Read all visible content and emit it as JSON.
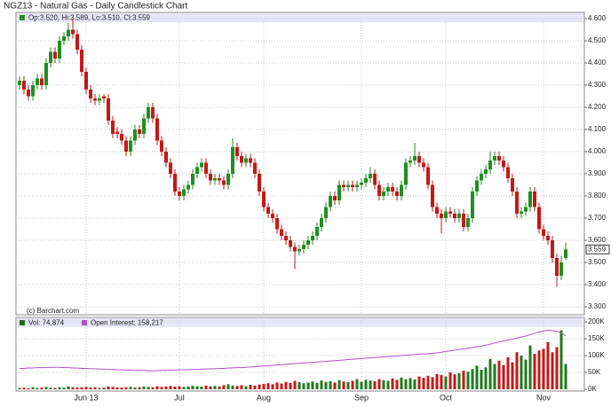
{
  "chart_data": [
    {
      "type": "candlestick",
      "title": "NGZ13 - Natural Gas - Daily Candlestick Chart",
      "legend_text": "Op:3.520, Hi:3.589, Lo:3.510, Cl:3.559",
      "annotation": "(c) Barchart.com",
      "up_color": "#1f8f1f",
      "down_color": "#c41818",
      "grid": true,
      "categories": [
        null,
        null,
        null,
        null,
        null,
        null,
        null,
        null,
        null,
        null,
        null,
        null,
        null,
        null,
        null,
        "Jun 13",
        null,
        null,
        null,
        null,
        null,
        null,
        null,
        null,
        null,
        null,
        null,
        null,
        null,
        null,
        null,
        null,
        null,
        null,
        null,
        null,
        "Jul",
        null,
        null,
        null,
        null,
        null,
        null,
        null,
        null,
        null,
        null,
        null,
        null,
        null,
        null,
        null,
        null,
        null,
        null,
        "Aug",
        null,
        null,
        null,
        null,
        null,
        null,
        null,
        null,
        null,
        null,
        null,
        null,
        null,
        null,
        null,
        null,
        null,
        null,
        null,
        null,
        null,
        "Sep",
        null,
        null,
        null,
        null,
        null,
        null,
        null,
        null,
        null,
        null,
        null,
        null,
        null,
        null,
        null,
        null,
        null,
        null,
        "Oct",
        null,
        null,
        null,
        null,
        null,
        null,
        null,
        null,
        null,
        null,
        null,
        null,
        null,
        null,
        null,
        null,
        null,
        null,
        null,
        null,
        null,
        "Nov",
        null,
        null,
        null,
        null,
        null
      ],
      "open": [
        4.3,
        4.32,
        4.28,
        4.25,
        4.3,
        4.33,
        4.3,
        4.4,
        4.45,
        4.42,
        4.5,
        4.52,
        4.55,
        4.53,
        4.46,
        4.36,
        4.28,
        4.24,
        4.23,
        4.25,
        4.24,
        4.14,
        4.09,
        4.08,
        4.05,
        4.0,
        4.05,
        4.1,
        4.08,
        4.15,
        4.2,
        4.15,
        4.05,
        4.0,
        3.95,
        3.9,
        3.82,
        3.8,
        3.83,
        3.85,
        3.9,
        3.93,
        3.95,
        3.9,
        3.87,
        3.88,
        3.87,
        3.85,
        3.9,
        4.02,
        3.98,
        3.95,
        3.97,
        3.95,
        3.9,
        3.82,
        3.75,
        3.72,
        3.7,
        3.65,
        3.62,
        3.6,
        3.57,
        3.55,
        3.56,
        3.58,
        3.6,
        3.62,
        3.66,
        3.7,
        3.75,
        3.8,
        3.78,
        3.85,
        3.84,
        3.85,
        3.84,
        3.85,
        3.86,
        3.88,
        3.9,
        3.85,
        3.8,
        3.82,
        3.84,
        3.82,
        3.8,
        3.85,
        3.95,
        3.96,
        3.98,
        3.95,
        3.93,
        3.85,
        3.75,
        3.72,
        3.7,
        3.73,
        3.72,
        3.7,
        3.72,
        3.66,
        3.7,
        3.82,
        3.87,
        3.9,
        3.92,
        3.96,
        3.98,
        3.96,
        3.93,
        3.88,
        3.82,
        3.72,
        3.73,
        3.75,
        3.82,
        3.75,
        3.65,
        3.62,
        3.6,
        3.52,
        3.44,
        3.52
      ],
      "high": [
        4.34,
        4.34,
        4.3,
        4.32,
        4.35,
        4.35,
        4.42,
        4.47,
        4.47,
        4.52,
        4.54,
        4.58,
        4.6,
        4.55,
        4.48,
        4.38,
        4.3,
        4.26,
        4.26,
        4.26,
        4.26,
        4.16,
        4.11,
        4.1,
        4.07,
        4.07,
        4.12,
        4.12,
        4.17,
        4.22,
        4.22,
        4.17,
        4.07,
        4.02,
        3.97,
        3.92,
        3.84,
        3.85,
        3.87,
        3.92,
        3.95,
        3.97,
        3.97,
        3.92,
        3.9,
        3.9,
        3.89,
        3.92,
        4.06,
        4.04,
        4.0,
        3.99,
        3.99,
        3.97,
        3.92,
        3.84,
        3.77,
        3.74,
        3.72,
        3.67,
        3.64,
        3.62,
        3.59,
        3.58,
        3.6,
        3.62,
        3.64,
        3.68,
        3.72,
        3.77,
        3.82,
        3.82,
        3.87,
        3.87,
        3.87,
        3.87,
        3.87,
        3.88,
        3.9,
        3.93,
        3.92,
        3.87,
        3.84,
        3.86,
        3.86,
        3.84,
        3.87,
        3.97,
        3.98,
        4.04,
        4.0,
        3.97,
        3.95,
        3.87,
        3.77,
        3.74,
        3.75,
        3.75,
        3.74,
        3.74,
        3.74,
        3.72,
        3.84,
        3.89,
        3.92,
        3.94,
        4.0,
        4.0,
        4.0,
        3.98,
        3.95,
        3.9,
        3.84,
        3.75,
        3.77,
        3.84,
        3.84,
        3.77,
        3.67,
        3.64,
        3.62,
        3.54,
        3.53,
        3.589
      ],
      "low": [
        4.28,
        4.26,
        4.23,
        4.23,
        4.28,
        4.28,
        4.28,
        4.38,
        4.4,
        4.4,
        4.48,
        4.5,
        4.51,
        4.44,
        4.34,
        4.26,
        4.22,
        4.21,
        4.21,
        4.22,
        4.12,
        4.06,
        4.06,
        4.03,
        3.98,
        3.98,
        4.03,
        4.06,
        4.06,
        4.13,
        4.13,
        4.03,
        3.98,
        3.93,
        3.88,
        3.8,
        3.78,
        3.78,
        3.81,
        3.83,
        3.88,
        3.91,
        3.88,
        3.85,
        3.85,
        3.85,
        3.83,
        3.83,
        3.88,
        3.96,
        3.93,
        3.93,
        3.93,
        3.88,
        3.8,
        3.73,
        3.7,
        3.68,
        3.63,
        3.6,
        3.58,
        3.55,
        3.47,
        3.53,
        3.54,
        3.56,
        3.58,
        3.6,
        3.64,
        3.68,
        3.73,
        3.76,
        3.76,
        3.82,
        3.82,
        3.82,
        3.82,
        3.83,
        3.84,
        3.86,
        3.83,
        3.78,
        3.78,
        3.8,
        3.8,
        3.78,
        3.78,
        3.83,
        3.93,
        3.94,
        3.93,
        3.91,
        3.83,
        3.73,
        3.7,
        3.63,
        3.68,
        3.7,
        3.68,
        3.68,
        3.64,
        3.64,
        3.68,
        3.8,
        3.85,
        3.88,
        3.9,
        3.94,
        3.94,
        3.91,
        3.86,
        3.8,
        3.7,
        3.7,
        3.71,
        3.73,
        3.73,
        3.63,
        3.6,
        3.58,
        3.5,
        3.39,
        3.42,
        3.51
      ],
      "close": [
        4.32,
        4.28,
        4.25,
        4.3,
        4.33,
        4.3,
        4.4,
        4.45,
        4.42,
        4.5,
        4.52,
        4.55,
        4.53,
        4.46,
        4.36,
        4.28,
        4.24,
        4.23,
        4.24,
        4.24,
        4.14,
        4.08,
        4.08,
        4.05,
        4.0,
        4.05,
        4.1,
        4.08,
        4.15,
        4.2,
        4.15,
        4.05,
        4.0,
        3.95,
        3.9,
        3.82,
        3.8,
        3.83,
        3.85,
        3.9,
        3.93,
        3.95,
        3.9,
        3.87,
        3.88,
        3.87,
        3.85,
        3.9,
        4.02,
        3.98,
        3.95,
        3.97,
        3.95,
        3.9,
        3.82,
        3.75,
        3.72,
        3.7,
        3.65,
        3.62,
        3.6,
        3.57,
        3.55,
        3.56,
        3.58,
        3.6,
        3.62,
        3.66,
        3.7,
        3.75,
        3.8,
        3.78,
        3.85,
        3.84,
        3.85,
        3.84,
        3.85,
        3.86,
        3.88,
        3.9,
        3.85,
        3.8,
        3.82,
        3.84,
        3.82,
        3.8,
        3.85,
        3.95,
        3.96,
        3.98,
        3.95,
        3.93,
        3.85,
        3.75,
        3.72,
        3.7,
        3.73,
        3.72,
        3.7,
        3.72,
        3.66,
        3.7,
        3.82,
        3.87,
        3.9,
        3.92,
        3.96,
        3.98,
        3.96,
        3.93,
        3.88,
        3.82,
        3.72,
        3.73,
        3.75,
        3.82,
        3.75,
        3.65,
        3.62,
        3.6,
        3.52,
        3.44,
        3.5,
        3.559
      ],
      "ylim": [
        3.264,
        4.628
      ],
      "yticks": [
        {
          "value": 3.3,
          "label": "3.300"
        },
        {
          "value": 3.4,
          "label": "3.400"
        },
        {
          "value": 3.5,
          "label": "3.500"
        },
        {
          "value": 3.6,
          "label": "3.600"
        },
        {
          "value": 3.7,
          "label": "3.700"
        },
        {
          "value": 3.8,
          "label": "3.800"
        },
        {
          "value": 3.9,
          "label": "3.900"
        },
        {
          "value": 4.0,
          "label": "4.000"
        },
        {
          "value": 4.1,
          "label": "4.100"
        },
        {
          "value": 4.2,
          "label": "4.200"
        },
        {
          "value": 4.3,
          "label": "4.300"
        },
        {
          "value": 4.4,
          "label": "4.400"
        },
        {
          "value": 4.5,
          "label": "4.500"
        },
        {
          "value": 4.6,
          "label": "4.600"
        }
      ]
    },
    {
      "type": "bar",
      "up_color": "#1f7a1f",
      "down_color": "#c41818",
      "grid": true,
      "series": [
        {
          "name": "Vol: 74,874",
          "color": "#1f6a1f",
          "values": [
            4000,
            5000,
            3000,
            6000,
            4000,
            5000,
            7000,
            5000,
            4000,
            6000,
            5000,
            8000,
            6000,
            5000,
            6000,
            7000,
            5000,
            6000,
            4000,
            5000,
            8000,
            7000,
            6000,
            5000,
            6000,
            7000,
            5000,
            6000,
            8000,
            7000,
            6000,
            9000,
            7000,
            8000,
            10000,
            8000,
            9000,
            7000,
            8000,
            10000,
            9000,
            8000,
            11000,
            9000,
            10000,
            8000,
            12000,
            15000,
            11000,
            10000,
            12000,
            9000,
            13000,
            11000,
            14000,
            16000,
            18000,
            15000,
            20000,
            17000,
            22000,
            19000,
            25000,
            21000,
            18000,
            20000,
            23000,
            19000,
            26000,
            22000,
            24000,
            20000,
            27000,
            23000,
            21000,
            25000,
            30000,
            22000,
            28000,
            26000,
            24000,
            30000,
            27000,
            25000,
            32000,
            28000,
            35000,
            30000,
            33000,
            29000,
            38000,
            34000,
            40000,
            36000,
            45000,
            42000,
            38000,
            50000,
            44000,
            48000,
            55000,
            52000,
            60000,
            70000,
            58000,
            65000,
            90000,
            75000,
            85000,
            72000,
            95000,
            80000,
            110000,
            100000,
            88000,
            130000,
            105000,
            115000,
            120000,
            140000,
            110000,
            125000,
            175000,
            74874
          ]
        },
        {
          "name": "Open Interest: 158,217",
          "color": "#b050c8",
          "values": [
            62000,
            62000,
            63000,
            63000,
            64000,
            64000,
            64000,
            65000,
            65000,
            65000,
            64000,
            64000,
            63000,
            63000,
            62000,
            62000,
            61000,
            61000,
            60000,
            60000,
            59000,
            59000,
            58000,
            58000,
            57000,
            57000,
            56000,
            56000,
            56000,
            55000,
            55000,
            55000,
            56000,
            56000,
            57000,
            57000,
            58000,
            58000,
            58000,
            59000,
            59000,
            60000,
            60000,
            61000,
            61000,
            62000,
            62000,
            63000,
            63000,
            64000,
            64000,
            65000,
            66000,
            67000,
            68000,
            69000,
            70000,
            71000,
            72000,
            73000,
            74000,
            75000,
            76000,
            77000,
            78000,
            79000,
            80000,
            81000,
            82000,
            83000,
            84000,
            85000,
            86000,
            87000,
            88000,
            89000,
            90000,
            91000,
            92000,
            93000,
            94000,
            95000,
            96000,
            97000,
            98000,
            99000,
            100000,
            101000,
            102000,
            103000,
            104000,
            105000,
            106000,
            107000,
            108000,
            110000,
            112000,
            114000,
            116000,
            118000,
            120000,
            122000,
            124000,
            126000,
            128000,
            131000,
            134000,
            137000,
            140000,
            143000,
            146000,
            149000,
            152000,
            155000,
            158000,
            162000,
            166000,
            170000,
            173000,
            175000,
            174000,
            172000,
            168000,
            158217
          ]
        }
      ],
      "ylim": [
        0,
        200000
      ],
      "yticks": [
        {
          "value": 0,
          "label": "0K"
        },
        {
          "value": 50000,
          "label": "50K"
        },
        {
          "value": 100000,
          "label": "100K"
        },
        {
          "value": 150000,
          "label": "150K"
        },
        {
          "value": 200000,
          "label": "200K"
        }
      ]
    }
  ]
}
